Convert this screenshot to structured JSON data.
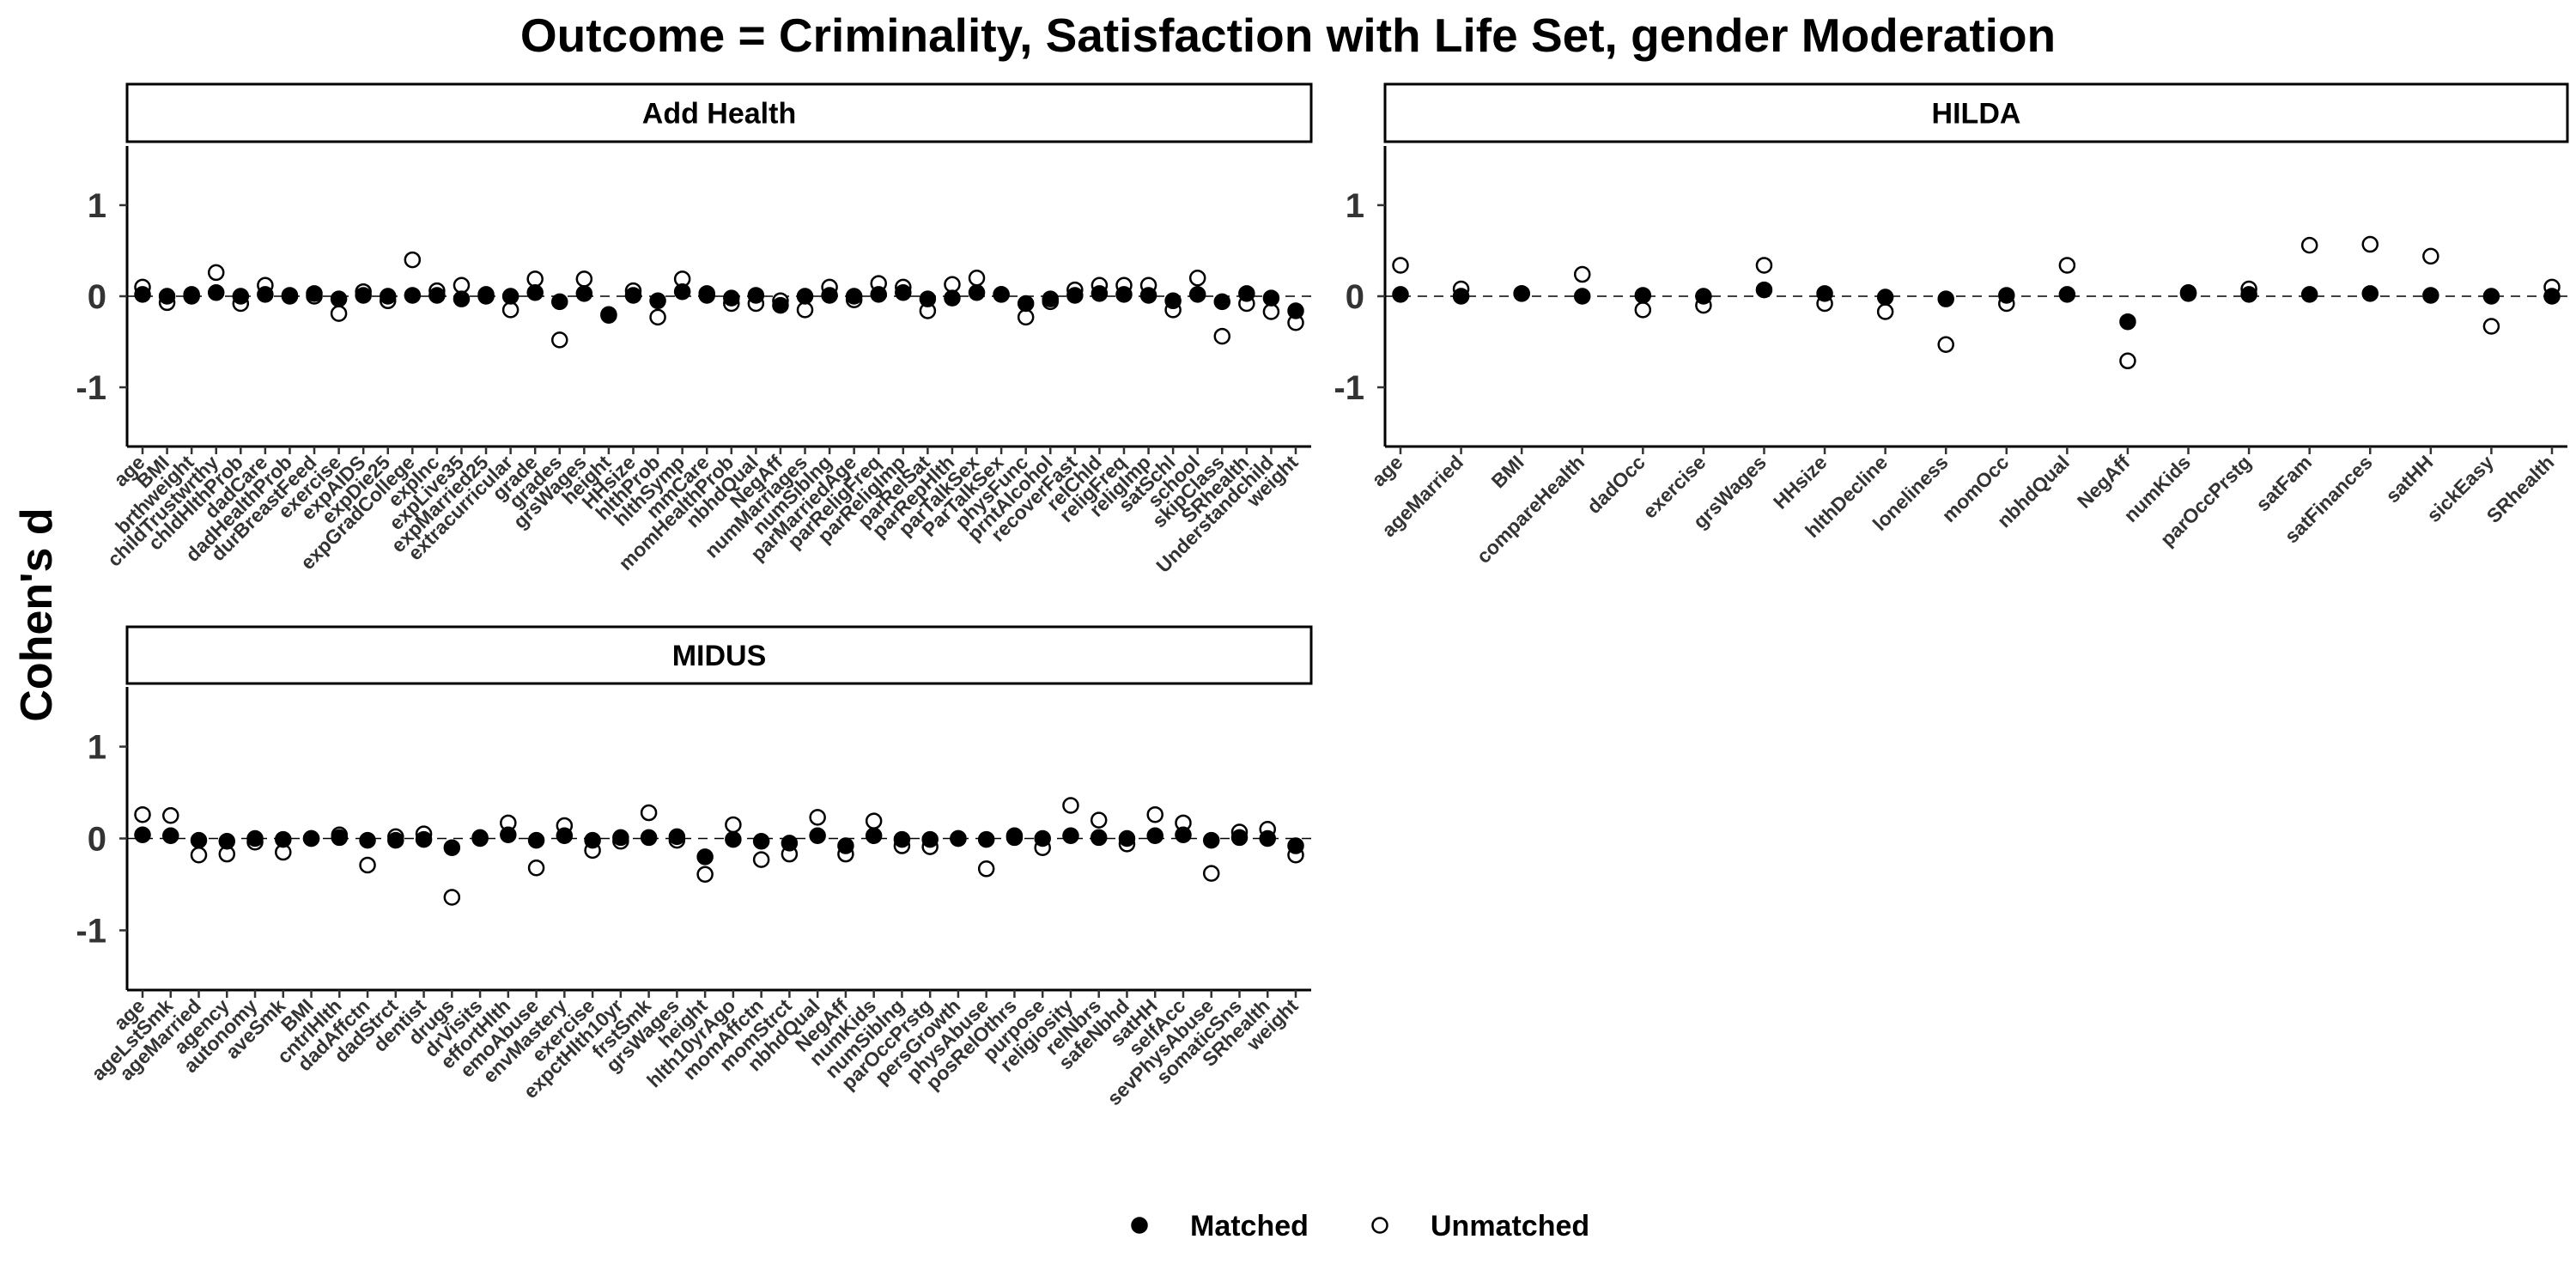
{
  "figure": {
    "title": "Outcome = Criminality, Satisfaction with Life Set, gender Moderation",
    "ylabel": "Cohen's d",
    "legend": {
      "matched": "Matched",
      "unmatched": "Unmatched",
      "placement": "bottom"
    },
    "colors": {
      "matched_fill": "#000000",
      "unmatched_fill": "#ffffff",
      "point_stroke": "#000000",
      "axis": "#000000",
      "reference_line": "#000000"
    }
  },
  "chart_data": [
    {
      "type": "scatter",
      "panel": "Add Health",
      "ylim": [
        -1.65,
        1.65
      ],
      "yticks": [
        1,
        0,
        -1
      ],
      "ytick_labels": [
        "1",
        "0",
        "-1"
      ],
      "reference_line": 0,
      "grid": false,
      "categories": [
        "age",
        "BMI",
        "brthweight",
        "childTrustwrthy",
        "chldHlthProb",
        "dadCare",
        "dadHealthProb",
        "durBreastFeed",
        "exercise",
        "expAIDS",
        "expDie25",
        "expGradCollege",
        "expInc",
        "expLive35",
        "expMarried25",
        "extracurricular",
        "grade",
        "grades",
        "grsWages",
        "height",
        "HHsize",
        "hlthProb",
        "hlthSymp",
        "mmCare",
        "momHealthProb",
        "nbhdQual",
        "NegAff",
        "numMarriages",
        "numSiblng",
        "parMarriedAge",
        "parReligFreq",
        "parReligImp",
        "parRelSat",
        "parRepHlth",
        "parTalkSex",
        "ParTalkSex",
        "physFunc",
        "prntAlcohol",
        "recoverFast",
        "relChld",
        "religFreq",
        "religImp",
        "satSchl",
        "school",
        "skipClass",
        "SRhealth",
        "Understandchild",
        "weight"
      ],
      "series": [
        {
          "name": "Matched",
          "values": [
            0.02,
            0.0,
            0.02,
            0.04,
            0.0,
            0.02,
            0.01,
            0.03,
            -0.03,
            0.01,
            0.0,
            0.01,
            0.01,
            -0.03,
            0.0,
            0.0,
            0.04,
            -0.06,
            0.03,
            -0.2,
            0.01,
            -0.05,
            0.05,
            0.01,
            -0.02,
            0.01,
            -0.1,
            0.0,
            0.01,
            0.0,
            0.02,
            0.04,
            -0.03,
            -0.02,
            0.04,
            0.02,
            -0.08,
            -0.03,
            0.01,
            0.03,
            0.02,
            0.01,
            -0.05,
            0.02,
            -0.06,
            0.03,
            -0.02,
            -0.16
          ]
        },
        {
          "name": "Unmatched",
          "values": [
            0.1,
            -0.07,
            0.0,
            0.26,
            -0.08,
            0.12,
            0.0,
            0.0,
            -0.19,
            0.05,
            -0.05,
            0.4,
            0.06,
            0.12,
            0.02,
            -0.15,
            0.19,
            -0.48,
            0.19,
            -0.21,
            0.06,
            -0.23,
            0.19,
            0.03,
            -0.08,
            -0.08,
            -0.05,
            -0.15,
            0.1,
            -0.04,
            0.14,
            0.1,
            -0.16,
            0.13,
            0.2,
            0.02,
            -0.23,
            -0.06,
            0.07,
            0.12,
            0.12,
            0.12,
            -0.15,
            0.2,
            -0.44,
            -0.08,
            -0.17,
            -0.29
          ]
        }
      ]
    },
    {
      "type": "scatter",
      "panel": "HILDA",
      "ylim": [
        -1.65,
        1.65
      ],
      "yticks": [
        1,
        0,
        -1
      ],
      "ytick_labels": [
        "1",
        "0",
        "-1"
      ],
      "reference_line": 0,
      "grid": false,
      "categories": [
        "age",
        "ageMarried",
        "BMI",
        "compareHealth",
        "dadOcc",
        "exercise",
        "grsWages",
        "HHsize",
        "hlthDecline",
        "loneliness",
        "momOcc",
        "nbhdQual",
        "NegAff",
        "numKids",
        "parOccPrstg",
        "satFam",
        "satFinances",
        "satHH",
        "sickEasy",
        "SRhealth"
      ],
      "series": [
        {
          "name": "Matched",
          "values": [
            0.02,
            0.0,
            0.03,
            0.0,
            0.01,
            0.0,
            0.07,
            0.03,
            -0.01,
            -0.03,
            0.01,
            0.02,
            -0.28,
            0.04,
            0.02,
            0.02,
            0.03,
            0.01,
            0.0,
            0.0
          ]
        },
        {
          "name": "Unmatched",
          "values": [
            0.34,
            0.08,
            0.03,
            0.24,
            -0.15,
            -0.1,
            0.34,
            -0.08,
            -0.17,
            -0.53,
            -0.08,
            0.34,
            -0.71,
            0.03,
            0.08,
            0.56,
            0.57,
            0.44,
            -0.33,
            0.1
          ]
        }
      ]
    },
    {
      "type": "scatter",
      "panel": "MIDUS",
      "ylim": [
        -1.65,
        1.65
      ],
      "yticks": [
        1,
        0,
        -1
      ],
      "ytick_labels": [
        "1",
        "0",
        "-1"
      ],
      "reference_line": 0,
      "grid": false,
      "categories": [
        "age",
        "ageLstSmk",
        "ageMarried",
        "agency",
        "autonomy",
        "aveSmk",
        "BMI",
        "cntrlHlth",
        "dadAffctn",
        "dadStrct",
        "dentist",
        "drugs",
        "drVisits",
        "effortHlth",
        "emoAbuse",
        "envMastery",
        "exercise",
        "expctHlth10yr",
        "frstSmk",
        "grsWages",
        "height",
        "hlth10yrAgo",
        "momAffctn",
        "momStrct",
        "nbhdQual",
        "NegAff",
        "numKids",
        "numSiblng",
        "parOccPrstg",
        "persGrowth",
        "physAbuse",
        "posRelOthrs",
        "purpose",
        "religiosity",
        "relNbrs",
        "safeNbhd",
        "satHH",
        "selfAcc",
        "sevPhysAbuse",
        "somaticSns",
        "SRhealth",
        "weight"
      ],
      "series": [
        {
          "name": "Matched",
          "values": [
            0.04,
            0.03,
            -0.02,
            -0.03,
            0.0,
            -0.01,
            0.0,
            0.01,
            -0.02,
            -0.02,
            -0.01,
            -0.1,
            0.01,
            0.04,
            -0.02,
            0.03,
            -0.02,
            0.01,
            0.01,
            0.02,
            -0.2,
            -0.01,
            -0.03,
            -0.05,
            0.03,
            -0.08,
            0.03,
            -0.01,
            -0.01,
            0.0,
            -0.01,
            0.03,
            0.0,
            0.03,
            0.01,
            0.0,
            0.03,
            0.04,
            -0.02,
            0.01,
            0.0,
            -0.08
          ]
        },
        {
          "name": "Unmatched",
          "values": [
            0.26,
            0.25,
            -0.18,
            -0.17,
            -0.04,
            -0.15,
            0.0,
            0.04,
            -0.29,
            0.02,
            0.05,
            -0.64,
            0.0,
            0.17,
            -0.32,
            0.14,
            -0.13,
            -0.03,
            0.28,
            -0.02,
            -0.39,
            0.15,
            -0.23,
            -0.17,
            0.23,
            -0.17,
            0.19,
            -0.08,
            -0.09,
            0.0,
            -0.33,
            0.01,
            -0.1,
            0.36,
            0.2,
            -0.06,
            0.26,
            0.17,
            -0.38,
            0.07,
            0.1,
            -0.18
          ]
        }
      ]
    }
  ]
}
